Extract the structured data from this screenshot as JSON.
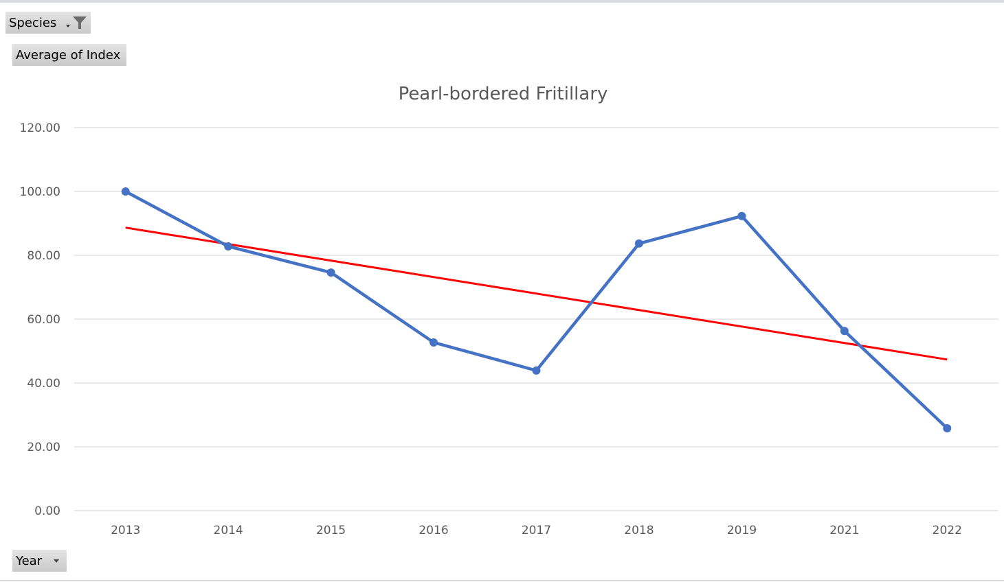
{
  "controls": {
    "species_label": "Species",
    "average_label": "Average of Index",
    "year_label": "Year"
  },
  "colors": {
    "series": "#4472c4",
    "trendline": "#ff0000",
    "grid": "#d9d9d9"
  },
  "chart_data": {
    "type": "line",
    "title": "Pearl-bordered Fritillary",
    "categories": [
      "2013",
      "2014",
      "2015",
      "2016",
      "2017",
      "2018",
      "2019",
      "2021",
      "2022"
    ],
    "series": [
      {
        "name": "Average of Index",
        "values": [
          100.0,
          82.8,
          74.6,
          52.7,
          43.9,
          83.7,
          92.3,
          56.3,
          25.8
        ]
      }
    ],
    "trendline": "linear",
    "ylim": [
      0,
      120
    ],
    "yticks": [
      "0.00",
      "20.00",
      "40.00",
      "60.00",
      "80.00",
      "100.00",
      "120.00"
    ],
    "grid": true,
    "xlabel": "",
    "ylabel": ""
  }
}
